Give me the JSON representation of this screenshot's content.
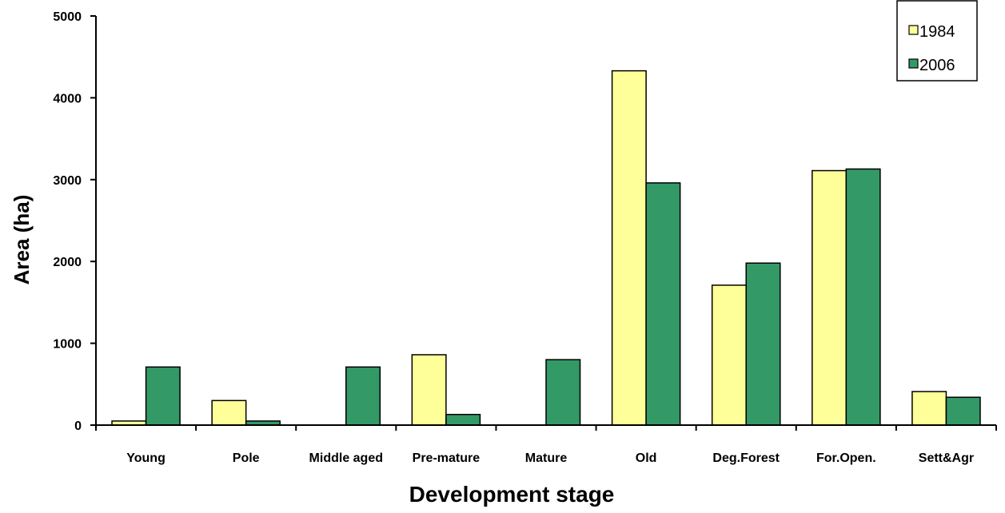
{
  "chart_data": {
    "type": "bar",
    "title": "",
    "xlabel": "Development stage",
    "ylabel": "Area (ha)",
    "ylim": [
      0,
      5000
    ],
    "yticks": [
      0,
      1000,
      2000,
      3000,
      4000,
      5000
    ],
    "grid": false,
    "legend_position": "top-right",
    "categories": [
      "Young",
      "Pole",
      "Middle aged",
      "Pre-mature",
      "Mature",
      "Old",
      "Deg.Forest",
      "For.Open.",
      "Sett&Agr"
    ],
    "series": [
      {
        "name": "1984",
        "color": "#FFFF99",
        "values": [
          50,
          300,
          0,
          860,
          0,
          4330,
          1710,
          3110,
          410
        ]
      },
      {
        "name": "2006",
        "color": "#339966",
        "values": [
          710,
          50,
          710,
          130,
          800,
          2960,
          1980,
          3130,
          340
        ]
      }
    ]
  }
}
